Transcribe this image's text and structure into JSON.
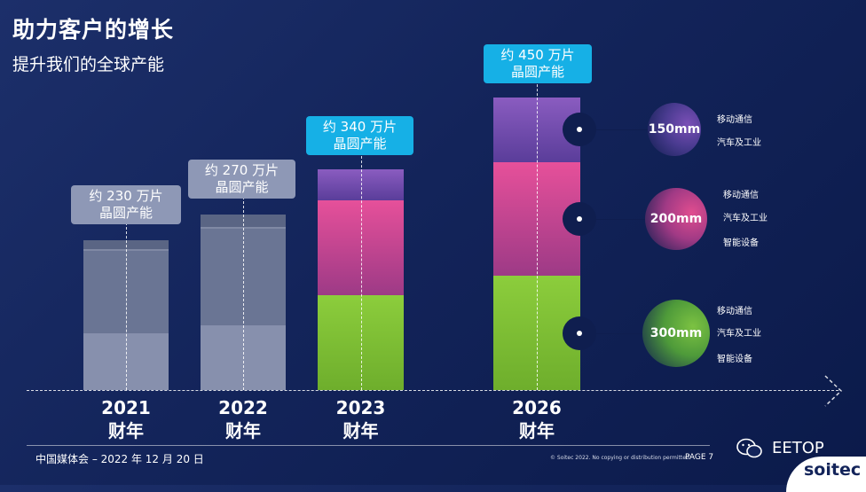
{
  "header": {
    "title": "助力客户的增长",
    "subtitle": "提升我们的全球产能"
  },
  "chart_data": {
    "type": "bar",
    "categories": [
      {
        "year": "2021",
        "period": "财年"
      },
      {
        "year": "2022",
        "period": "财年"
      },
      {
        "year": "2023",
        "period": "财年"
      },
      {
        "year": "2026",
        "period": "财年"
      }
    ],
    "capacity_labels": [
      {
        "value": "约 230 万片",
        "unit": "晶圆产能"
      },
      {
        "value": "约 270 万片",
        "unit": "晶圆产能"
      },
      {
        "value": "约 340 万片",
        "unit": "晶圆产能"
      },
      {
        "value": "约 450 万片",
        "unit": "晶圆产能"
      }
    ],
    "total_wafers_10k": [
      230,
      270,
      340,
      450
    ],
    "stack_fraction": [
      {
        "year": "2021",
        "bottom": 0.39,
        "middle": 0.55,
        "top": 0.06
      },
      {
        "year": "2022",
        "bottom": 0.38,
        "middle": 0.55,
        "top": 0.07
      },
      {
        "year": "2023",
        "bottom": 0.43,
        "middle": 0.43,
        "top": 0.14
      },
      {
        "year": "2026",
        "bottom": 0.39,
        "middle": 0.39,
        "top": 0.22
      }
    ],
    "series": [
      {
        "name": "300mm",
        "applications": [
          "移动通信",
          "汽车及工业",
          "智能设备"
        ],
        "color": "#7cc242"
      },
      {
        "name": "200mm",
        "applications": [
          "移动通信",
          "汽车及工业",
          "智能设备"
        ],
        "color": "#e04d8f"
      },
      {
        "name": "150mm",
        "applications": [
          "移动通信",
          "汽车及工业"
        ],
        "color": "#7a4fb6"
      }
    ],
    "colors": {
      "legacy_bottom": "#8790ad",
      "legacy_middle": "#6a7594",
      "legacy_top": "#5a6584",
      "label_grey": "#8e98b6",
      "label_cyan": "#16b0e6"
    }
  },
  "footer": {
    "event": "中国媒体会 – 2022 年 12 月 20 日",
    "copyright": "© Soitec 2022. No copying or distribution permitted.",
    "page": "PAGE 7",
    "watermark": "EETOP",
    "logo": "soitec"
  }
}
